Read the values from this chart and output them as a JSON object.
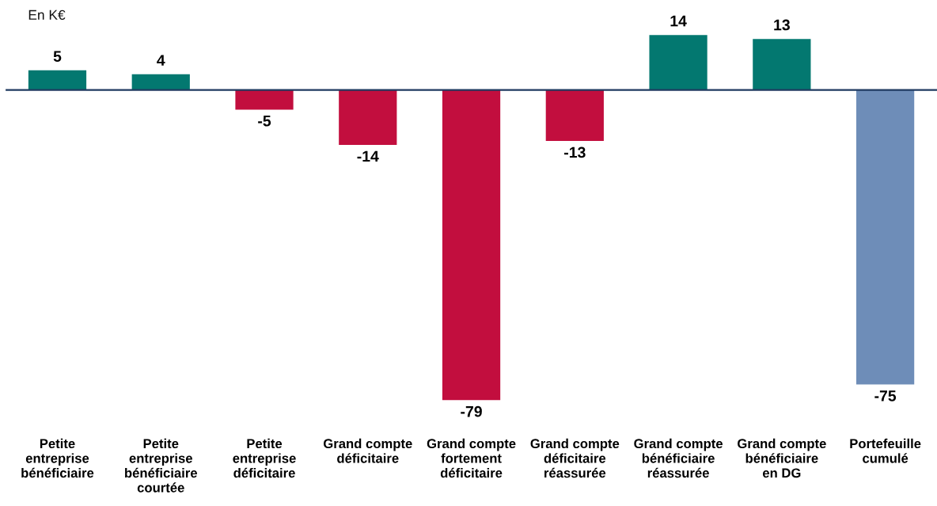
{
  "chart_data": {
    "type": "bar",
    "ylabel": "En K€",
    "categories": [
      "Petite\nentreprise\nbénéficiaire",
      "Petite\nentreprise\nbénéficiaire\ncourtée",
      "Petite\nentreprise\ndéficitaire",
      "Grand compte\ndéficitaire",
      "Grand compte\nfortement\ndéficitaire",
      "Grand compte\ndéficitaire\nréassurée",
      "Grand compte\nbénéficiaire\nréassurée",
      "Grand compte\nbénéficiaire\nen DG",
      "Portefeuille\ncumulé"
    ],
    "values": [
      5,
      4,
      -5,
      -14,
      -79,
      -13,
      14,
      13,
      -75
    ],
    "colors": [
      "#037870",
      "#037870",
      "#c20e3e",
      "#c20e3e",
      "#c20e3e",
      "#c20e3e",
      "#037870",
      "#037870",
      "#6e8db8"
    ],
    "data_labels": true,
    "tick_labels": "x"
  }
}
